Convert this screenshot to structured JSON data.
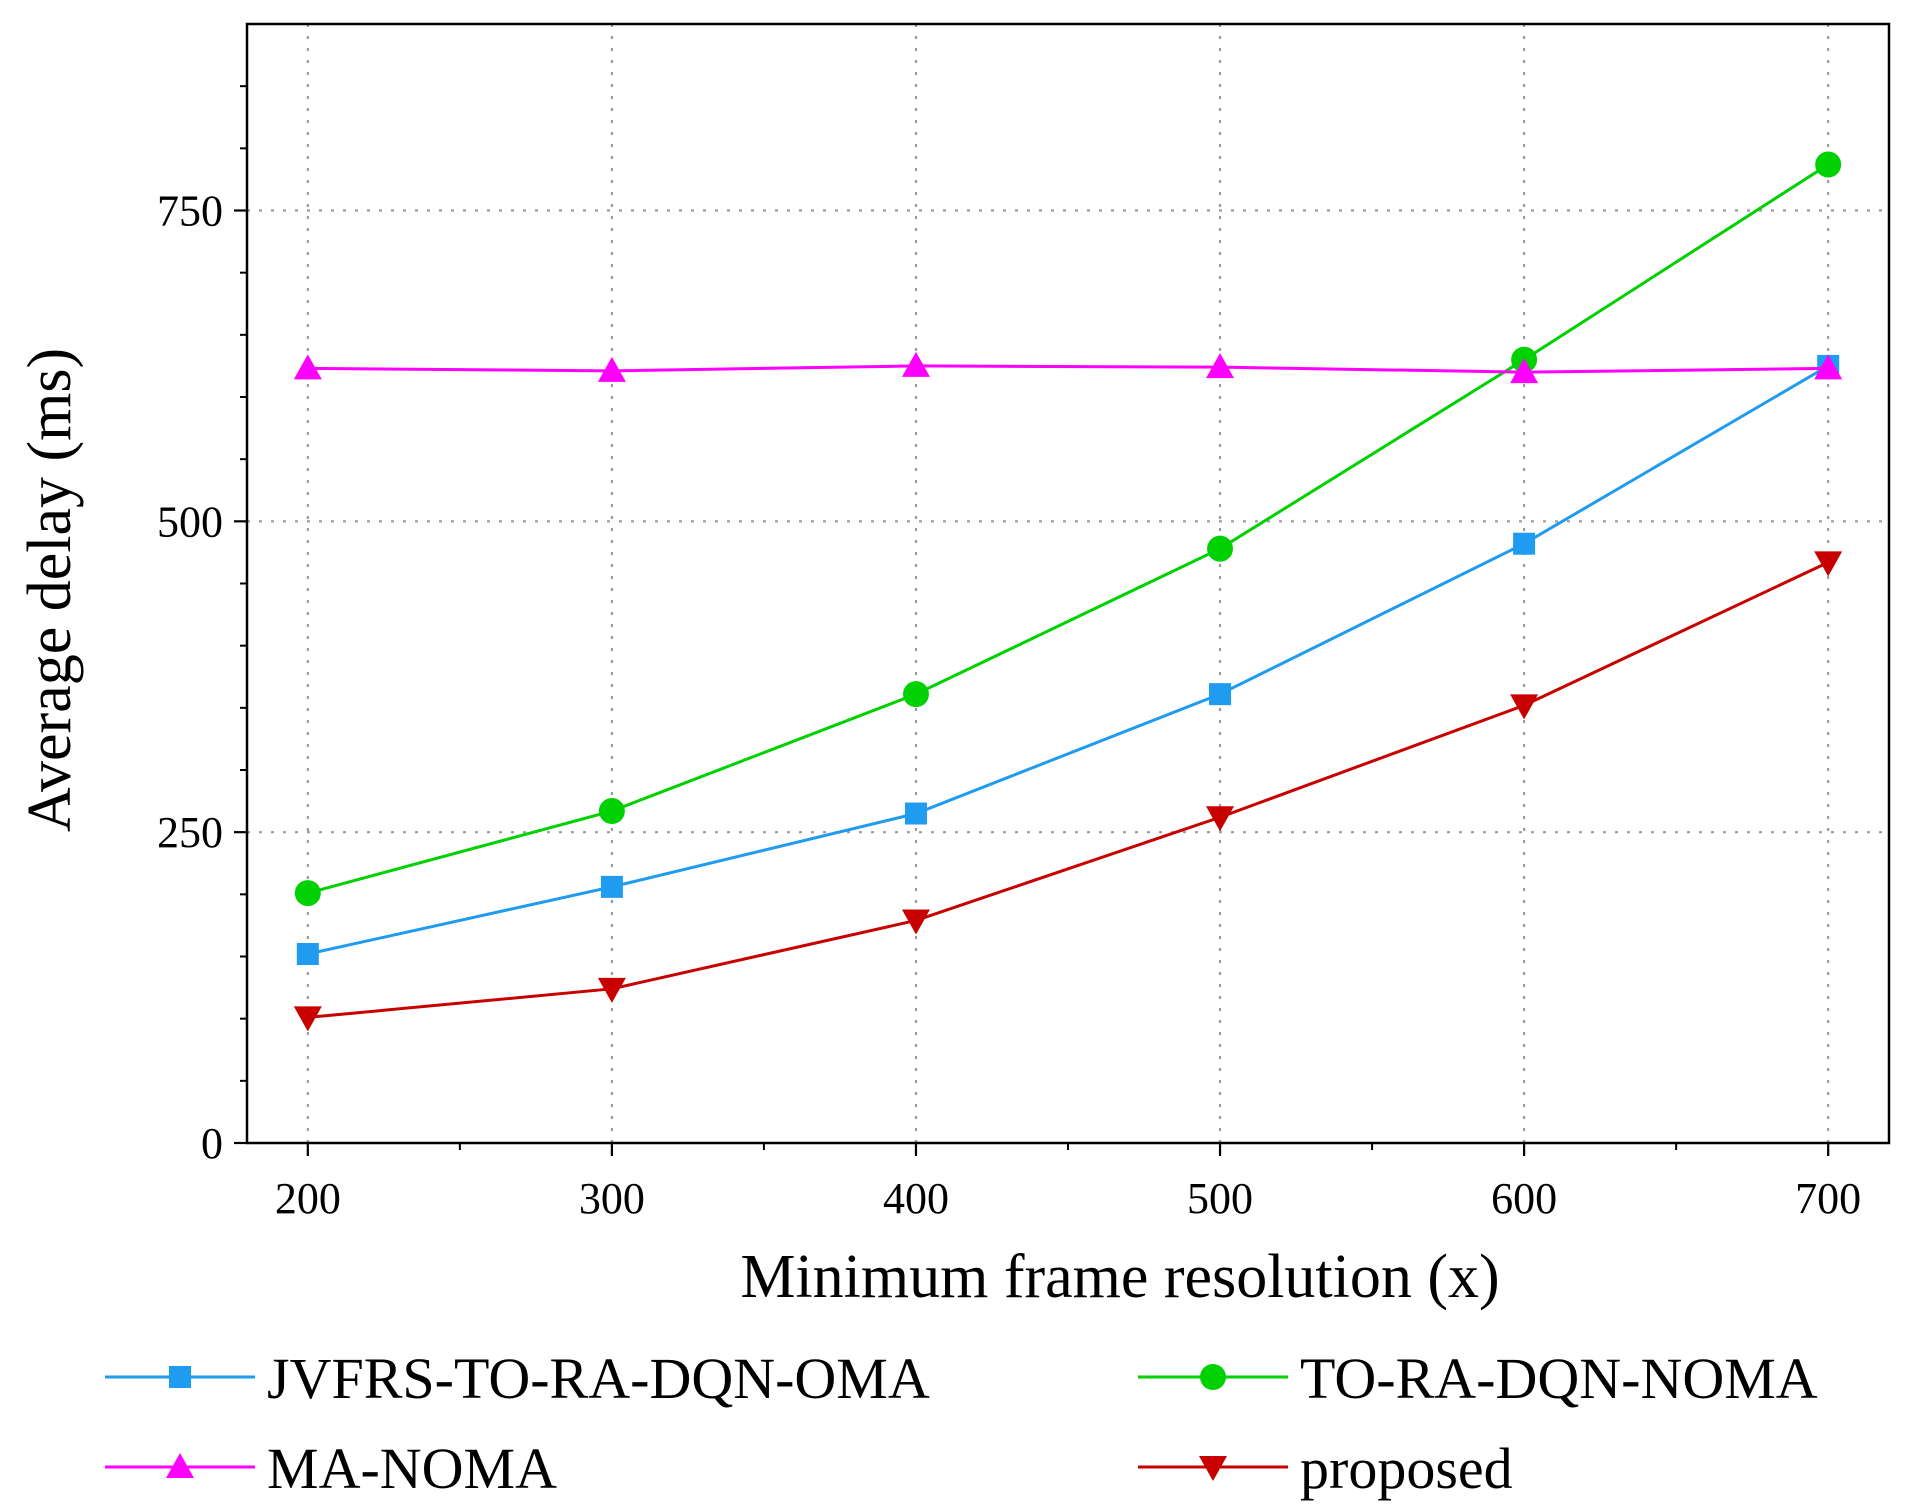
{
  "chart_data": {
    "type": "line",
    "title": "",
    "xlabel": "Minimum frame resolution (x)",
    "ylabel": "Average delay (ms)",
    "x": [
      200,
      300,
      400,
      500,
      600,
      700
    ],
    "x_ticks": [
      "200",
      "300",
      "400",
      "500",
      "600",
      "700"
    ],
    "y_ticks": [
      "0",
      "250",
      "500",
      "750"
    ],
    "xlim": [
      180,
      720
    ],
    "ylim": [
      0,
      900
    ],
    "grid": true,
    "legend_position": "bottom",
    "series": [
      {
        "name": "JVFRS-TO-RA-DQN-OMA",
        "color": "#1f9bef",
        "marker": "square",
        "values": [
          152,
          206,
          265,
          361,
          482,
          625
        ]
      },
      {
        "name": "TO-RA-DQN-NOMA",
        "color": "#00d100",
        "marker": "circle",
        "values": [
          201,
          267,
          361,
          478,
          630,
          787
        ]
      },
      {
        "name": "MA-NOMA",
        "color": "#ff00ff",
        "marker": "triangle-up",
        "values": [
          623,
          621,
          625,
          624,
          620,
          623
        ]
      },
      {
        "name": "proposed",
        "color": "#c80000",
        "marker": "triangle-down",
        "values": [
          101,
          124,
          179,
          262,
          352,
          467
        ]
      }
    ]
  }
}
